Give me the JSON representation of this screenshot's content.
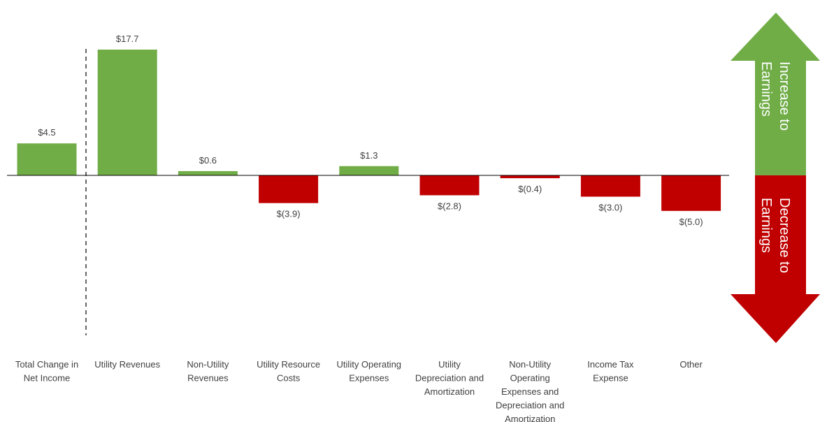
{
  "chart_data": {
    "type": "bar",
    "categories": [
      "Total Change in Net Income",
      "Utility Revenues",
      "Non-Utility Revenues",
      "Utility Resource Costs",
      "Utility Operating Expenses",
      "Utility Depreciation and Amortization",
      "Non-Utility Operating Expenses and Depreciation and Amortization",
      "Income Tax Expense",
      "Other"
    ],
    "category_label_lines": [
      [
        "Total Change in",
        "Net Income"
      ],
      [
        "Utility Revenues"
      ],
      [
        "Non-Utility",
        "Revenues"
      ],
      [
        "Utility Resource",
        "Costs"
      ],
      [
        "Utility Operating",
        "Expenses"
      ],
      [
        "Utility",
        "Depreciation and",
        "Amortization"
      ],
      [
        "Non-Utility",
        "Operating",
        "Expenses and",
        "Depreciation and",
        "Amortization"
      ],
      [
        "Income Tax",
        "Expense"
      ],
      [
        "Other"
      ]
    ],
    "values": [
      4.5,
      17.7,
      0.6,
      -3.9,
      1.3,
      -2.8,
      -0.4,
      -3.0,
      -5.0
    ],
    "data_labels": [
      "$4.5",
      "$17.7",
      "$0.6",
      "$(3.9)",
      "$1.3",
      "$(2.8)",
      "$(0.4)",
      "$(3.0)",
      "$(5.0)"
    ],
    "title": "",
    "xlabel": "",
    "ylabel": "",
    "grid": false,
    "separator_after_first": true,
    "colors": {
      "positive": "#70ad47",
      "negative": "#c00000",
      "axis": "#000000"
    }
  },
  "legend_arrow": {
    "up_text": [
      "Increase to",
      "Earnings"
    ],
    "down_text": [
      "Decrease to",
      "Earnings"
    ],
    "up_color": "#70ad47",
    "down_color": "#c00000"
  }
}
